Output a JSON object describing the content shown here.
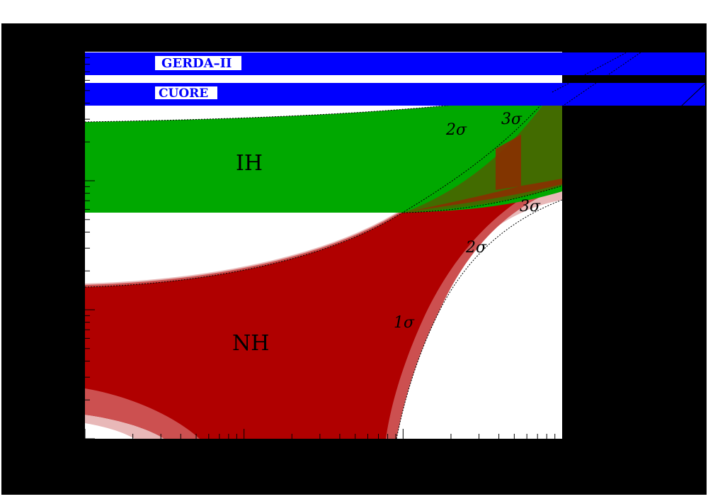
{
  "chart_data": {
    "type": "area",
    "title": "",
    "xlabel": "",
    "ylabel": "",
    "grid": false,
    "colors": {
      "frame": "#000000",
      "plot_background": "#ffffff",
      "experiment_band": "#0000ff",
      "ih_region": "#00a800",
      "nh_region": "#b00000",
      "nh_2sigma": "#cc5050",
      "nh_3sigma": "#e8b8b8",
      "overlap_region": "#4e6000"
    },
    "experiment_bands": [
      {
        "name": "GERDA–II"
      },
      {
        "name": "CUORE"
      }
    ],
    "regions": [
      {
        "name": "IH"
      },
      {
        "name": "NH"
      }
    ],
    "sigma_labels": [
      {
        "id": "ih-2sigma",
        "text": "2σ"
      },
      {
        "id": "ih-3sigma",
        "text": "3σ"
      },
      {
        "id": "nh-1sigma",
        "text": "1σ"
      },
      {
        "id": "nh-2sigma",
        "text": "2σ"
      },
      {
        "id": "nh-3sigma",
        "text": "3σ"
      }
    ]
  }
}
